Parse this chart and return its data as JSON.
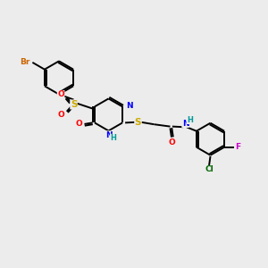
{
  "bg_color": "#ececec",
  "bond_color": "#000000",
  "atom_colors": {
    "Br": "#cc6600",
    "O": "#ff0000",
    "S": "#ccaa00",
    "N": "#0000ff",
    "H": "#009999",
    "C": "#000000",
    "F": "#cc00cc",
    "Cl": "#006600"
  },
  "font_size": 6.5,
  "line_width": 1.4
}
